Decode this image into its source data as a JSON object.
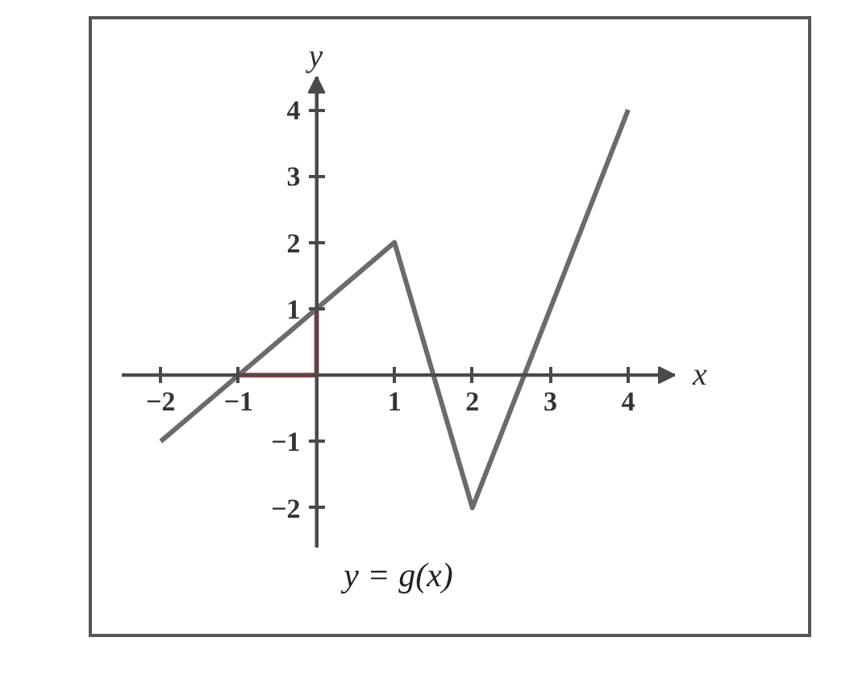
{
  "chart_data": {
    "type": "line",
    "title": "y = g(x)",
    "xlabel": "x",
    "ylabel": "y",
    "xlim": [
      -2.5,
      4.6
    ],
    "ylim": [
      -2.6,
      4.5
    ],
    "xticks": [
      {
        "value": -2,
        "label": "−2"
      },
      {
        "value": -1,
        "label": "−1"
      },
      1,
      2,
      3,
      4
    ],
    "yticks": [
      {
        "value": -2,
        "label": "−2"
      },
      {
        "value": -1,
        "label": "−1"
      },
      1,
      2,
      3,
      4
    ],
    "series": [
      {
        "color": "#6b6b6b",
        "x": [
          -2,
          1,
          2,
          4
        ],
        "values": [
          -1,
          2,
          -2,
          4
        ]
      },
      {
        "color": "#d23c4a",
        "x": [
          -1,
          0,
          0
        ],
        "values": [
          0,
          0,
          1
        ]
      }
    ]
  }
}
